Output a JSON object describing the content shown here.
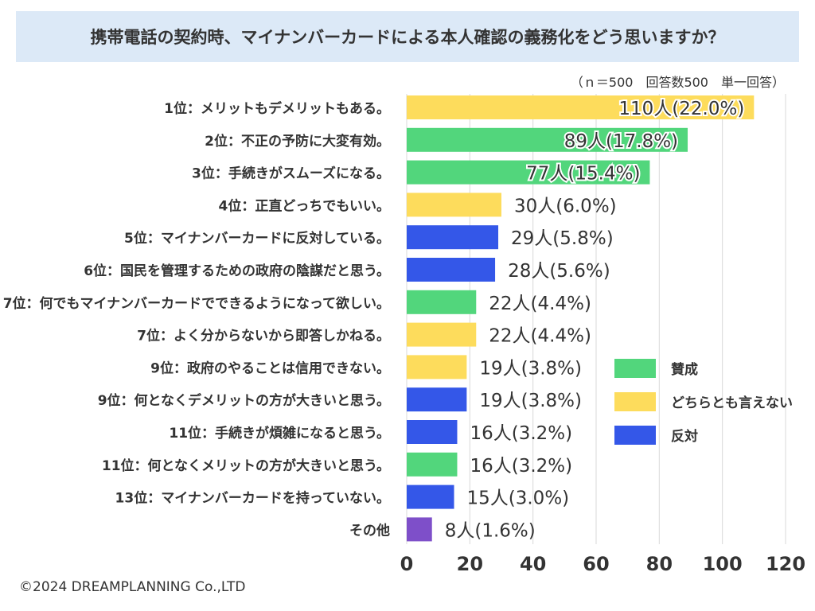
{
  "title": "携帯電話の契約時、マイナンバーカードによる本人確認の義務化をどう思いますか？",
  "note": "（ｎ＝500　回答数500　単一回答）",
  "copyright": "©2024 DREAMPLANNING Co.,LTD",
  "colors": {
    "賛成": "#52d67c",
    "どちらとも言えない": "#fddc5c",
    "反対": "#3457e8",
    "その他": "#7e4fc9"
  },
  "chart_data": {
    "type": "bar",
    "orientation": "horizontal",
    "categories": [
      "1位：メリットもデメリットもある。",
      "2位：不正の予防に大変有効。",
      "3位：手続きがスムーズになる。",
      "4位：正直どっちでもいい。",
      "5位：マイナンバーカードに反対している。",
      "6位：国民を管理するための政府の陰謀だと思う。",
      "7位：何でもマイナンバーカードでできるようになって欲しい。",
      "7位：よく分からないから即答しかねる。",
      "9位：政府のやることは信用できない。",
      "9位：何となくデメリットの方が大きいと思う。",
      "11位：手続きが煩雑になると思う。",
      "11位：何となくメリットの方が大きいと思う。",
      "13位：マイナンバーカードを持っていない。",
      "その他"
    ],
    "values": [
      110,
      89,
      77,
      30,
      29,
      28,
      22,
      22,
      19,
      19,
      16,
      16,
      15,
      8
    ],
    "groups": [
      "どちらとも言えない",
      "賛成",
      "賛成",
      "どちらとも言えない",
      "反対",
      "反対",
      "賛成",
      "どちらとも言えない",
      "どちらとも言えない",
      "反対",
      "反対",
      "賛成",
      "反対",
      "その他"
    ],
    "data_labels": [
      "110人(22.0%)",
      "89人(17.8%)",
      "77人(15.4%)",
      "30人(6.0%)",
      "29人(5.8%)",
      "28人(5.6%)",
      "22人(4.4%)",
      "22人(4.4%)",
      "19人(3.8%)",
      "19人(3.8%)",
      "16人(3.2%)",
      "16人(3.2%)",
      "15人(3.0%)",
      "8人(1.6%)"
    ],
    "xlim": [
      0,
      120
    ],
    "xticks": [
      "0",
      "20",
      "40",
      "60",
      "80",
      "100",
      "120"
    ],
    "grid": true,
    "legend": [
      "賛成",
      "どちらとも言えない",
      "反対"
    ],
    "legend_position": "right"
  }
}
